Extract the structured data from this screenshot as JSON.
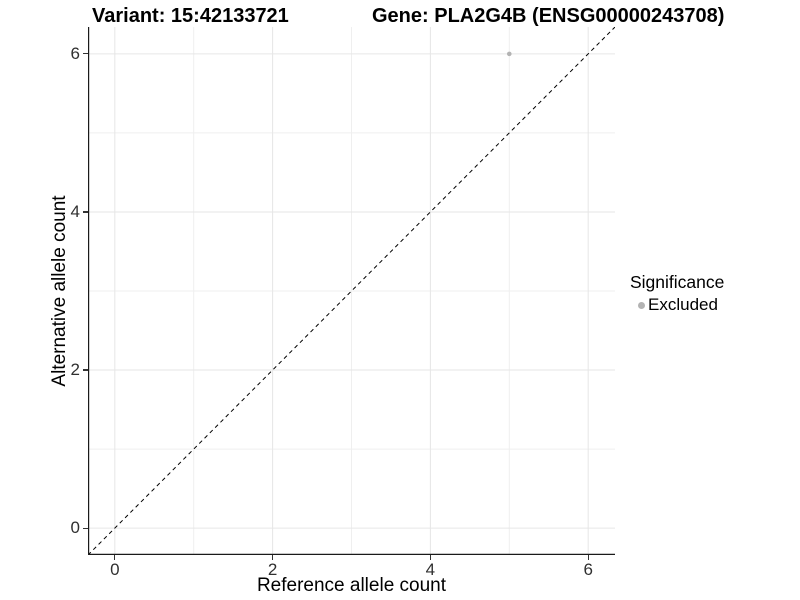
{
  "titles": {
    "variant": "Variant: 15:42133721",
    "gene": "Gene: PLA2G4B (ENSG00000243708)"
  },
  "axes": {
    "x_label": "Reference allele count",
    "y_label": "Alternative allele count",
    "x_tick_labels": [
      "0",
      "2",
      "4",
      "6"
    ],
    "y_tick_labels": [
      "0",
      "2",
      "4",
      "6"
    ]
  },
  "legend": {
    "title": "Significance",
    "items": [
      {
        "label": "Excluded",
        "color": "#b3b3b3"
      }
    ]
  },
  "chart_data": {
    "type": "scatter",
    "title": "Variant: 15:42133721 — Gene: PLA2G4B (ENSG00000243708)",
    "xlabel": "Reference allele count",
    "ylabel": "Alternative allele count",
    "series": [
      {
        "name": "Excluded",
        "color": "#b3b3b3",
        "points": [
          {
            "x": 5,
            "y": 6
          }
        ]
      }
    ],
    "reference_line": {
      "kind": "identity",
      "slope": 1,
      "intercept": 0,
      "style": "dashed",
      "color": "#000000"
    },
    "xlim": [
      -0.34,
      6.34
    ],
    "ylim": [
      -0.34,
      6.34
    ],
    "x_ticks": [
      0,
      2,
      4,
      6
    ],
    "y_ticks": [
      0,
      2,
      4,
      6
    ],
    "x_minor_ticks": [
      1,
      3,
      5
    ],
    "y_minor_ticks": [
      1,
      3,
      5
    ],
    "grid": true,
    "legend_position": "right",
    "colors": {
      "background": "#ffffff",
      "grid_major": "#e6e6e6",
      "grid_minor": "#efefef",
      "axis_line": "#1a1a1a",
      "point": "#b3b3b3"
    },
    "point_radius_px": 2.3
  }
}
